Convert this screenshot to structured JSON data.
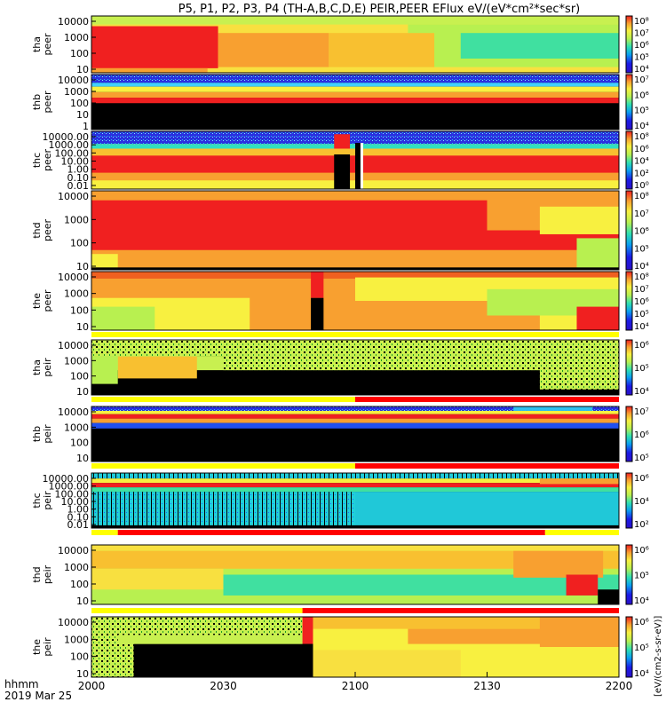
{
  "chart_data": {
    "type": "heatmap",
    "title": "P5, P1, P2, P3, P4 (TH-A,B,C,D,E) PEIR,PEER EFlux eV/(eV*cm²*sec*sr)",
    "x_axis": {
      "date_label": "2019 Mar 25",
      "unit_label": "hhmm",
      "tick_labels": [
        "2000",
        "2030",
        "2100",
        "2130",
        "2200"
      ],
      "range": [
        "20:00",
        "22:00"
      ]
    },
    "colorbar_label": "[eV/(cm2-s-sr-eV)]",
    "colorbar_colors": [
      "#1a1ae6",
      "#0aa0f0",
      "#2fe0b0",
      "#b8f050",
      "#f8f040",
      "#f8a030",
      "#f02020"
    ],
    "panels": [
      {
        "id": "tha_peer",
        "probe": "tha",
        "species": "peer",
        "y_ticks": [
          "10",
          "100",
          "1000",
          "10000"
        ],
        "cbar_ticks": [
          "10⁴",
          "10⁵",
          "10⁶",
          "10⁷",
          "10⁸"
        ]
      },
      {
        "id": "thb_peer",
        "probe": "thb",
        "species": "peer",
        "y_ticks": [
          "1",
          "10",
          "100",
          "1000",
          "10000"
        ],
        "cbar_ticks": [
          "10⁴",
          "10⁵",
          "10⁶",
          "10⁷"
        ]
      },
      {
        "id": "thc_peer",
        "probe": "thc",
        "species": "peer",
        "y_ticks": [
          "0.01",
          "0.10",
          "1.00",
          "10.00",
          "100.00",
          "1000.00",
          "10000.00"
        ],
        "cbar_ticks": [
          "10⁰",
          "10²",
          "10⁴",
          "10⁶",
          "10⁸"
        ]
      },
      {
        "id": "thd_peer",
        "probe": "thd",
        "species": "peer",
        "y_ticks": [
          "10",
          "100",
          "1000",
          "10000"
        ],
        "cbar_ticks": [
          "10⁴",
          "10⁵",
          "10⁶",
          "10⁷",
          "10⁸"
        ]
      },
      {
        "id": "the_peer",
        "probe": "the",
        "species": "peer",
        "y_ticks": [
          "10",
          "100",
          "1000",
          "10000"
        ],
        "cbar_ticks": [
          "10⁴",
          "10⁵",
          "10⁶",
          "10⁷",
          "10⁸"
        ]
      },
      {
        "id": "tha_peir",
        "probe": "tha",
        "species": "peir",
        "y_ticks": [
          "10",
          "100",
          "1000",
          "10000"
        ],
        "cbar_ticks": [
          "10⁴",
          "10⁵",
          "10⁶"
        ]
      },
      {
        "id": "thb_peir",
        "probe": "thb",
        "species": "peir",
        "y_ticks": [
          "10",
          "100",
          "1000",
          "10000"
        ],
        "cbar_ticks": [
          "10⁵",
          "10⁶",
          "10⁷"
        ]
      },
      {
        "id": "thc_peir",
        "probe": "thc",
        "species": "peir",
        "y_ticks": [
          "0.01",
          "0.10",
          "1.00",
          "10.00",
          "100.00",
          "1000.00",
          "10000.00"
        ],
        "cbar_ticks": [
          "10²",
          "10⁴",
          "10⁶"
        ]
      },
      {
        "id": "thd_peir",
        "probe": "thd",
        "species": "peir",
        "y_ticks": [
          "10",
          "100",
          "1000",
          "10000"
        ],
        "cbar_ticks": [
          "10⁴",
          "10⁵",
          "10⁶"
        ]
      },
      {
        "id": "the_peir",
        "probe": "the",
        "species": "peir",
        "y_ticks": [
          "10",
          "100",
          "1000",
          "10000"
        ],
        "cbar_ticks": [
          "10⁴",
          "10⁵",
          "10⁶"
        ]
      }
    ]
  }
}
